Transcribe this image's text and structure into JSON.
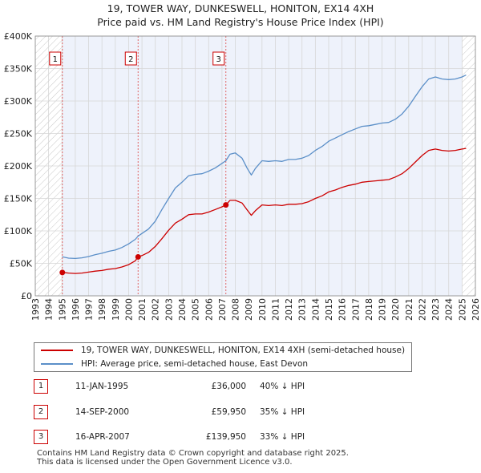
{
  "header": {
    "title_line1": "19, TOWER WAY, DUNKESWELL, HONITON, EX14 4XH",
    "title_line2": "Price paid vs. HM Land Registry's House Price Index (HPI)"
  },
  "chart_data": {
    "type": "line",
    "title": "19, TOWER WAY, DUNKESWELL, HONITON, EX14 4XH — Price paid vs. HM Land Registry's House Price Index (HPI)",
    "xlim": [
      1993,
      2026
    ],
    "ylim": [
      0,
      400000
    ],
    "y_ticks": [
      0,
      50000,
      100000,
      150000,
      200000,
      250000,
      300000,
      350000,
      400000
    ],
    "y_tick_labels": [
      "£0",
      "£50K",
      "£100K",
      "£150K",
      "£200K",
      "£250K",
      "£300K",
      "£350K",
      "£400K"
    ],
    "x_ticks": [
      1993,
      1994,
      1995,
      1996,
      1997,
      1998,
      1999,
      2000,
      2001,
      2002,
      2003,
      2004,
      2005,
      2006,
      2007,
      2008,
      2009,
      2010,
      2011,
      2012,
      2013,
      2014,
      2015,
      2016,
      2017,
      2018,
      2019,
      2020,
      2021,
      2022,
      2023,
      2024,
      2025,
      2026
    ],
    "grid": true,
    "hatched_regions": [
      [
        1993,
        1995.03
      ],
      [
        2025.0,
        2026
      ]
    ],
    "series": [
      {
        "name": "19, TOWER WAY, DUNKESWELL, HONITON, EX14 4XH (semi-detached house)",
        "color": "#cc0000",
        "x": [
          1995.03,
          1995.5,
          1996,
          1996.5,
          1997,
          1997.5,
          1998,
          1998.5,
          1999,
          1999.5,
          2000,
          2000.5,
          2000.71,
          2001,
          2001.5,
          2002,
          2002.5,
          2003,
          2003.5,
          2004,
          2004.5,
          2005,
          2005.5,
          2006,
          2006.5,
          2007,
          2007.29,
          2007.6,
          2008,
          2008.5,
          2008.9,
          2009.2,
          2009.5,
          2010,
          2010.5,
          2011,
          2011.5,
          2012,
          2012.5,
          2013,
          2013.5,
          2014,
          2014.5,
          2015,
          2015.5,
          2016,
          2016.5,
          2017,
          2017.5,
          2018,
          2018.5,
          2019,
          2019.5,
          2020,
          2020.5,
          2021,
          2021.5,
          2022,
          2022.5,
          2023,
          2023.5,
          2024,
          2024.5,
          2025,
          2025.3
        ],
        "values": [
          36000,
          35000,
          34500,
          35000,
          36500,
          38000,
          39000,
          41000,
          42000,
          44500,
          48000,
          54000,
          59950,
          62000,
          67000,
          76000,
          88000,
          101000,
          112000,
          118000,
          125000,
          126000,
          126000,
          129000,
          133000,
          137000,
          139950,
          147000,
          147000,
          143000,
          132000,
          124000,
          131000,
          140000,
          139000,
          140000,
          139000,
          141000,
          141000,
          142000,
          145000,
          150000,
          154000,
          160000,
          163000,
          167000,
          170000,
          172000,
          175000,
          176000,
          177000,
          178000,
          179000,
          183000,
          188000,
          196000,
          206000,
          216000,
          224000,
          226000,
          224000,
          223000,
          224000,
          226000,
          227000
        ]
      },
      {
        "name": "HPI: Average price, semi-detached house, East Devon",
        "color": "#5b8fc8",
        "x": [
          1995.03,
          1995.5,
          1996,
          1996.5,
          1997,
          1997.5,
          1998,
          1998.5,
          1999,
          1999.5,
          2000,
          2000.5,
          2000.71,
          2001,
          2001.5,
          2002,
          2002.5,
          2003,
          2003.5,
          2004,
          2004.5,
          2005,
          2005.5,
          2006,
          2006.5,
          2007,
          2007.29,
          2007.6,
          2008,
          2008.5,
          2008.9,
          2009.2,
          2009.5,
          2010,
          2010.5,
          2011,
          2011.5,
          2012,
          2012.5,
          2013,
          2013.5,
          2014,
          2014.5,
          2015,
          2015.5,
          2016,
          2016.5,
          2017,
          2017.5,
          2018,
          2018.5,
          2019,
          2019.5,
          2020,
          2020.5,
          2021,
          2021.5,
          2022,
          2022.5,
          2023,
          2023.5,
          2024,
          2024.5,
          2025,
          2025.3
        ],
        "values": [
          60000,
          58000,
          57500,
          58500,
          60500,
          63500,
          65500,
          68500,
          70500,
          74500,
          80000,
          87000,
          92000,
          96000,
          103000,
          115000,
          133000,
          150000,
          166000,
          175000,
          185000,
          187000,
          188000,
          192000,
          197000,
          204000,
          208000,
          218000,
          220000,
          212000,
          196000,
          186000,
          196000,
          208000,
          207000,
          208000,
          207000,
          210000,
          210000,
          212000,
          216000,
          224000,
          230000,
          238000,
          243000,
          248000,
          253000,
          257000,
          261000,
          262000,
          264000,
          266000,
          267000,
          272000,
          280000,
          292000,
          307000,
          322000,
          334000,
          337000,
          334000,
          333000,
          334000,
          337000,
          340000
        ]
      }
    ],
    "sales": [
      {
        "id": "1",
        "x": 1995.03,
        "y": 36000
      },
      {
        "id": "2",
        "x": 2000.71,
        "y": 59950
      },
      {
        "id": "3",
        "x": 2007.29,
        "y": 139950
      }
    ]
  },
  "legend": {
    "property_label": "19, TOWER WAY, DUNKESWELL, HONITON, EX14 4XH (semi-detached house)",
    "hpi_label": "HPI: Average price, semi-detached house, East Devon",
    "property_color": "#cc0000",
    "hpi_color": "#5b8fc8"
  },
  "sales_table": [
    {
      "id": "1",
      "date": "11-JAN-1995",
      "price": "£36,000",
      "hpi": "40% ↓ HPI"
    },
    {
      "id": "2",
      "date": "14-SEP-2000",
      "price": "£59,950",
      "hpi": "35% ↓ HPI"
    },
    {
      "id": "3",
      "date": "16-APR-2007",
      "price": "£139,950",
      "hpi": "33% ↓ HPI"
    }
  ],
  "footer": {
    "line1": "Contains HM Land Registry data © Crown copyright and database right 2025.",
    "line2": "This data is licensed under the Open Government Licence v3.0."
  }
}
